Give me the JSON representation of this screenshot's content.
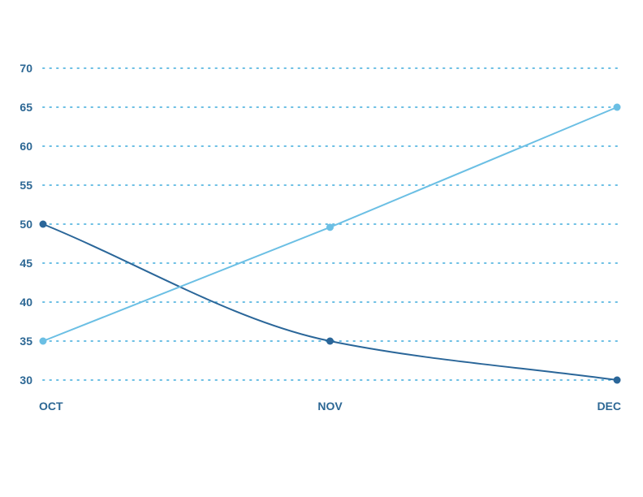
{
  "chart_data": {
    "type": "line",
    "categories": [
      "OCT",
      "NOV",
      "DEC"
    ],
    "ylim": [
      30,
      70
    ],
    "yticks": [
      30,
      35,
      40,
      45,
      50,
      55,
      60,
      65,
      70
    ],
    "grid": true,
    "series": [
      {
        "values": [
          50,
          35,
          30
        ],
        "color": "#2a6699",
        "curve": "smooth"
      },
      {
        "values": [
          35,
          49.6,
          65
        ],
        "color": "#6bbfe4",
        "curve": "linear"
      }
    ]
  }
}
